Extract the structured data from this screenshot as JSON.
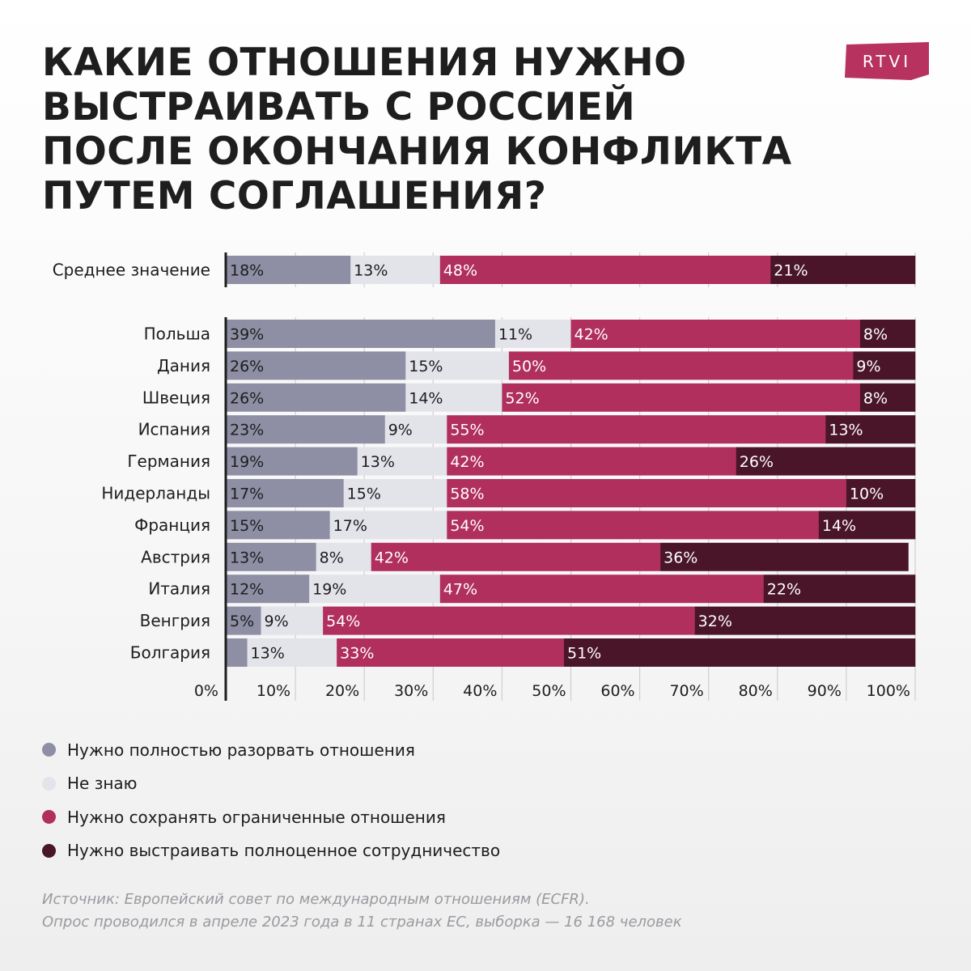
{
  "title": "КАКИЕ ОТНОШЕНИЯ НУЖНО ВЫСТРАИВАТЬ С РОССИЕЙ ПОСЛЕ ОКОНЧАНИЯ КОНФЛИКТА ПУТЕМ СОГЛАШЕНИЯ?",
  "logo": "RTVI",
  "colors": {
    "break": "#8e8ea4",
    "dont_know": "#e3e3ea",
    "limited": "#b02f5d",
    "full": "#4a1528",
    "brand": "#b8325f"
  },
  "chart_data": {
    "type": "bar",
    "orientation": "horizontal",
    "stacked": true,
    "categories": [
      "Среднее значение",
      "Польша",
      "Дания",
      "Швеция",
      "Испания",
      "Германия",
      "Нидерланды",
      "Франция",
      "Австрия",
      "Италия",
      "Венгрия",
      "Болгария"
    ],
    "series": [
      {
        "name": "Нужно полностью разорвать отношения",
        "values": [
          18,
          39,
          26,
          26,
          23,
          19,
          17,
          15,
          13,
          12,
          5,
          3
        ],
        "labels": [
          "18%",
          "39%",
          "26%",
          "26%",
          "23%",
          "19%",
          "17%",
          "15%",
          "13%",
          "12%",
          "5%",
          ""
        ]
      },
      {
        "name": "Не знаю",
        "values": [
          13,
          11,
          15,
          14,
          9,
          13,
          15,
          17,
          8,
          19,
          9,
          13
        ],
        "labels": [
          "13%",
          "11%",
          "15%",
          "14%",
          "9%",
          "13%",
          "15%",
          "17%",
          "8%",
          "19%",
          "9%",
          "13%"
        ]
      },
      {
        "name": "Нужно сохранять ограниченные отношения",
        "values": [
          48,
          42,
          50,
          52,
          55,
          42,
          58,
          54,
          42,
          47,
          54,
          33
        ],
        "labels": [
          "48%",
          "42%",
          "50%",
          "52%",
          "55%",
          "42%",
          "58%",
          "54%",
          "42%",
          "47%",
          "54%",
          "33%"
        ]
      },
      {
        "name": "Нужно выстраивать полноценное сотрудничество",
        "values": [
          21,
          8,
          9,
          8,
          13,
          26,
          10,
          14,
          36,
          22,
          32,
          51
        ],
        "labels": [
          "21%",
          "8%",
          "9%",
          "8%",
          "13%",
          "26%",
          "10%",
          "14%",
          "36%",
          "22%",
          "32%",
          "51%"
        ]
      }
    ],
    "xlim": [
      0,
      100
    ],
    "xticks": [
      "0%",
      "10%",
      "20%",
      "30%",
      "40%",
      "50%",
      "60%",
      "70%",
      "80%",
      "90%",
      "100%"
    ],
    "grid": true,
    "legend": "bottom"
  },
  "source": {
    "line1": "Источник: Европейский совет по международным отношениям (ECFR).",
    "line2": "Опрос проводился в апреле 2023 года в 11 странах ЕС, выборка — 16 168 человек"
  }
}
